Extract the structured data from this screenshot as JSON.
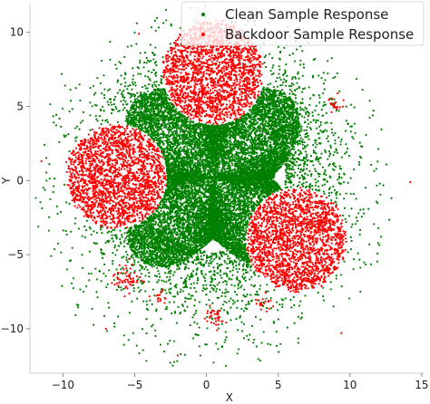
{
  "chart_data": {
    "type": "scatter",
    "xlabel": "X",
    "ylabel": "Y",
    "xlim": [
      -12.3,
      15.2
    ],
    "ylim": [
      -13.0,
      12.0
    ],
    "xticks": [
      -10,
      -5,
      0,
      5,
      10,
      15
    ],
    "yticks": [
      -10,
      -5,
      0,
      5,
      10
    ],
    "x_tick_labels": [
      "−10",
      "−5",
      "0",
      "5",
      "10",
      "15"
    ],
    "y_tick_labels": [
      "−10",
      "−5",
      "0",
      "5",
      "10"
    ],
    "grid": false,
    "legend_position": "top-right",
    "series": [
      {
        "name": "Clean Sample Response",
        "color": "#008000",
        "distribution": "dense central four-pointed star centered near (0.5, 0.2) with radial halo out to radius about 10",
        "approx_points": 14000
      },
      {
        "name": "Backdoor Sample Response",
        "color": "#ff0000",
        "distribution": "three dense disks centered near (0.5, 7.3), (-6.3, 0.3), (6.3, -4.0), radius about 3.5, plus small scattered red clusters",
        "approx_points": 6500
      }
    ],
    "clusters": [
      {
        "series": "Backdoor Sample Response",
        "cx": 0.5,
        "cy": 7.3,
        "r": 3.6
      },
      {
        "series": "Backdoor Sample Response",
        "cx": -6.3,
        "cy": 0.3,
        "r": 3.6
      },
      {
        "series": "Backdoor Sample Response",
        "cx": 6.3,
        "cy": -4.0,
        "r": 3.6
      }
    ]
  }
}
